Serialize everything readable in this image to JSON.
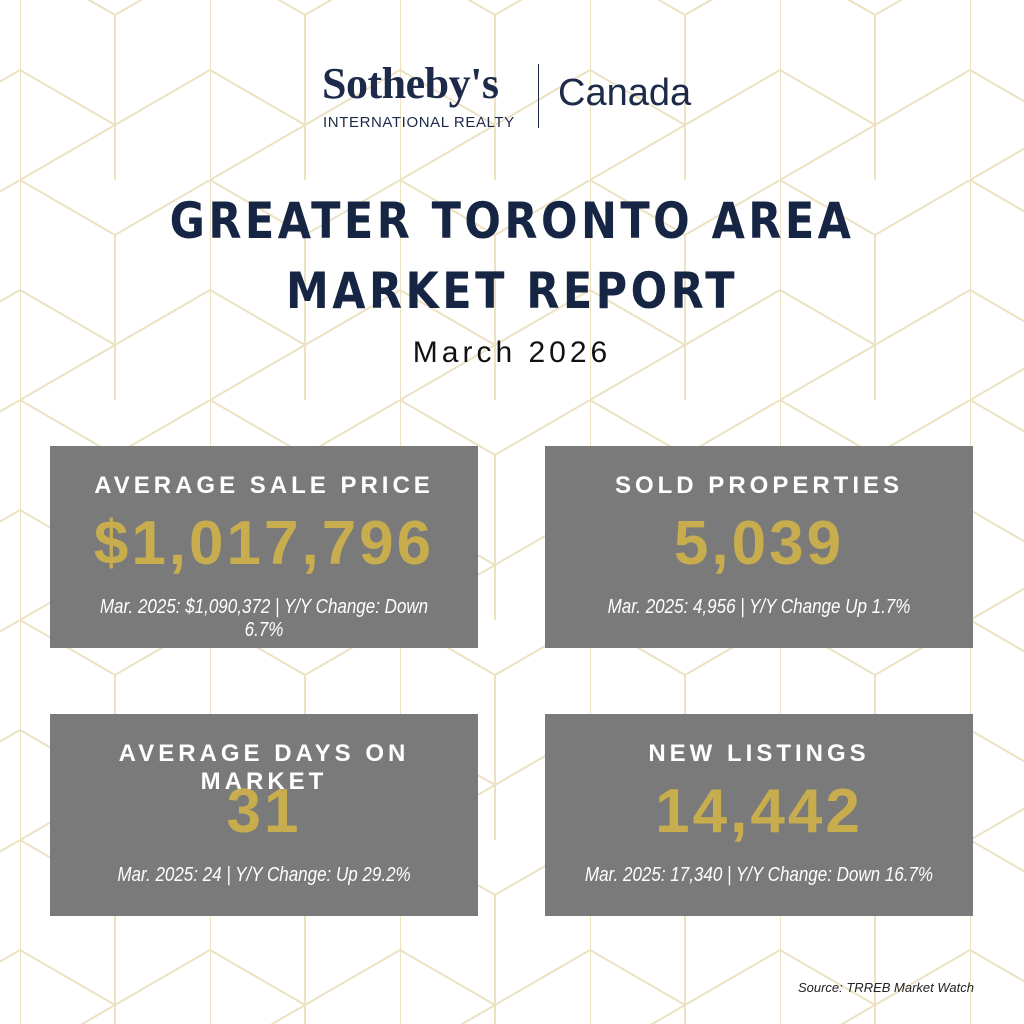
{
  "logo": {
    "brand": "Sotheby's",
    "subtitle": "INTERNATIONAL REALTY",
    "region": "Canada"
  },
  "header": {
    "title_lines": [
      "GREATER TORONTO AREA",
      "MARKET REPORT"
    ],
    "date": "March 2026"
  },
  "cards": [
    {
      "label": "AVERAGE SALE PRICE",
      "value": "$1,017,796",
      "note": "Mar. 2025: $1,090,372 | Y/Y Change: Down 6.7%"
    },
    {
      "label": "SOLD PROPERTIES",
      "value": "5,039",
      "note": "Mar. 2025: 4,956 | Y/Y Change Up 1.7%"
    },
    {
      "label": "AVERAGE DAYS ON MARKET",
      "value": "31",
      "note": "Mar. 2025: 24 | Y/Y Change: Up 29.2%"
    },
    {
      "label": "NEW LISTINGS",
      "value": "14,442",
      "note": "Mar. 2025: 17,340 | Y/Y Change: Down 16.7%"
    }
  ],
  "footer": {
    "source": "Source: TRREB Market Watch"
  }
}
